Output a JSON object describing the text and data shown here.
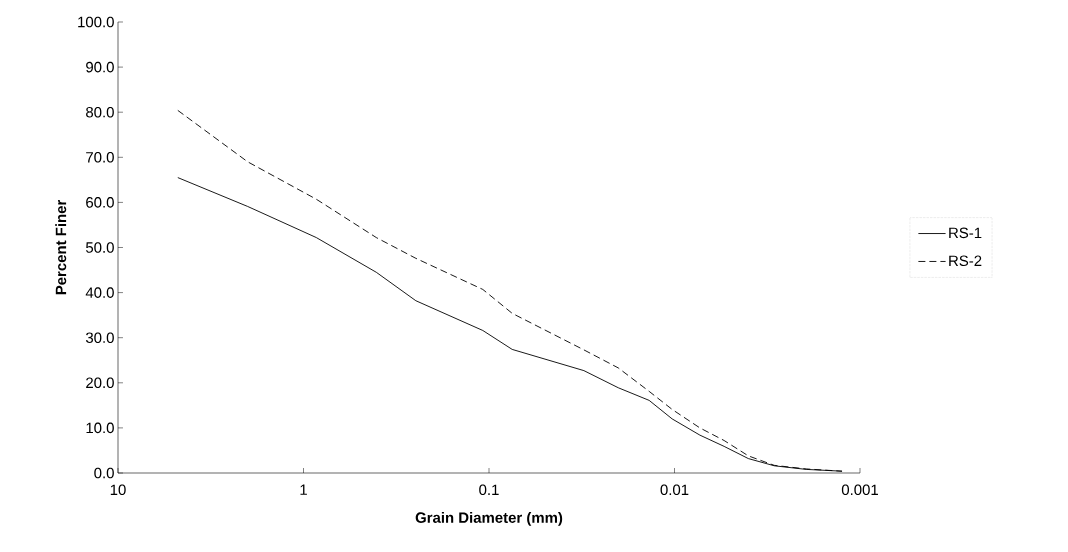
{
  "chart_data": {
    "type": "line",
    "xlabel": "Grain Diameter (mm)",
    "ylabel": "Percent Finer",
    "x": [
      4.76,
      2.0,
      0.853,
      0.405,
      0.248,
      0.108,
      0.075,
      0.0308,
      0.0201,
      0.0137,
      0.0103,
      0.0073,
      0.0054,
      0.004,
      0.0029,
      0.00195,
      0.00125
    ],
    "series": [
      {
        "name": "RS-1",
        "color": "#000000",
        "line_style": "solid",
        "values": [
          65.5,
          59.1,
          52.2,
          44.5,
          38.2,
          31.6,
          27.4,
          22.7,
          18.9,
          16.1,
          12.0,
          8.4,
          5.9,
          3.2,
          1.6,
          0.8,
          0.4
        ]
      },
      {
        "name": "RS-2",
        "color": "#000000",
        "line_style": "dashed",
        "values": [
          80.4,
          69.0,
          60.7,
          52.2,
          47.6,
          40.7,
          35.4,
          27.3,
          23.3,
          18.1,
          14.1,
          10.0,
          7.2,
          3.8,
          1.7,
          0.9,
          0.4
        ]
      }
    ],
    "log": "x",
    "xlim": [
      10,
      0.001
    ],
    "xticks": [
      10,
      1,
      0.1,
      0.01,
      0.001
    ],
    "ylim": [
      0,
      100
    ],
    "yticks": [
      {
        "value": 0,
        "label": "0.0"
      },
      {
        "value": 10,
        "label": "10.0"
      },
      {
        "value": 20,
        "label": "20.0"
      },
      {
        "value": 30,
        "label": "30.0"
      },
      {
        "value": 40,
        "label": "40.0"
      },
      {
        "value": 50,
        "label": "50.0"
      },
      {
        "value": 60,
        "label": "60.0"
      },
      {
        "value": 70,
        "label": "70.0"
      },
      {
        "value": 80,
        "label": "80.0"
      },
      {
        "value": 90,
        "label": "90.0"
      },
      {
        "value": 100,
        "label": "100.0"
      }
    ],
    "legend": "right",
    "grid": false,
    "marker": "none"
  }
}
